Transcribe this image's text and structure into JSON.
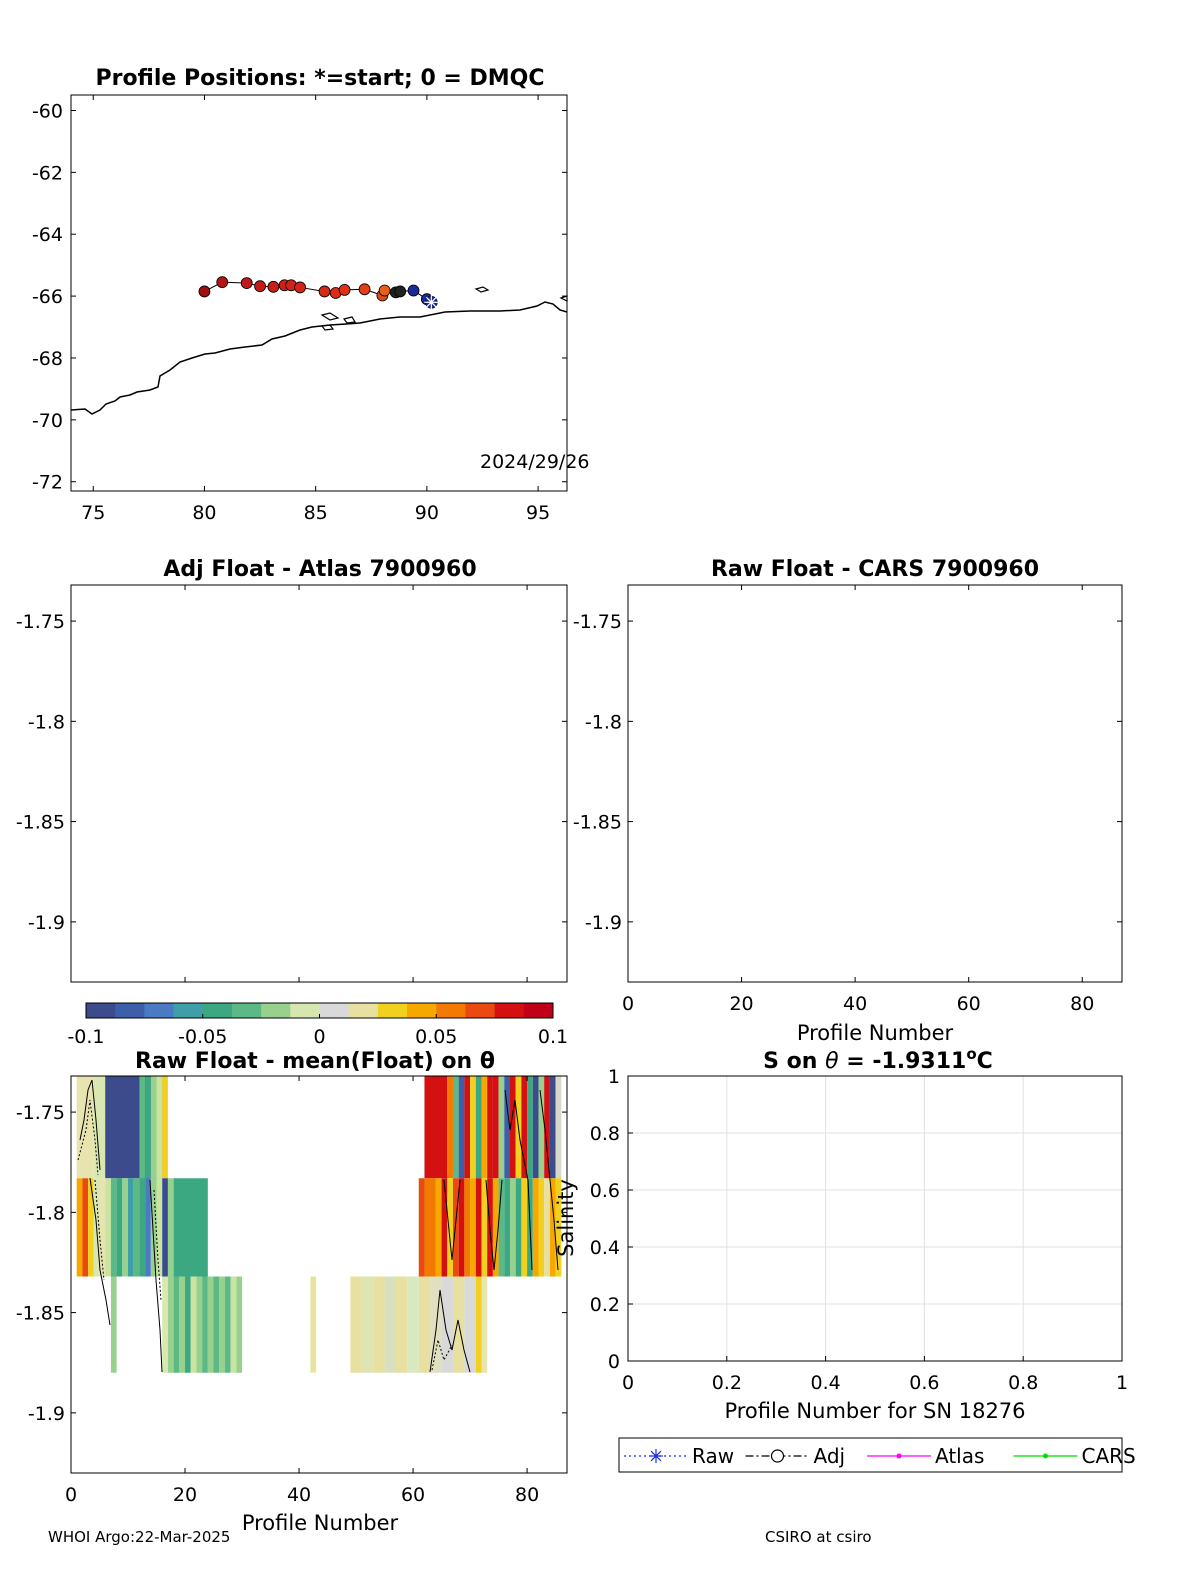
{
  "footer": {
    "left": "WHOI Argo:22-Mar-2025",
    "right": "CSIRO at csiro"
  },
  "chart_data": [
    {
      "id": "map",
      "type": "scatter",
      "title": "Profile Positions: *=start; 0 = DMQC",
      "xlim": [
        74,
        96.3
      ],
      "ylim": [
        -72.3,
        -59.5
      ],
      "xticks": [
        75,
        80,
        85,
        90,
        95
      ],
      "yticks": [
        -60,
        -62,
        -64,
        -66,
        -68,
        -70,
        -72
      ],
      "annotation": "2024/29/26",
      "track": [
        {
          "lon": 80.0,
          "lat": -65.85,
          "color": "#a01010"
        },
        {
          "lon": 80.8,
          "lat": -65.55,
          "color": "#b41414"
        },
        {
          "lon": 81.9,
          "lat": -65.58,
          "color": "#c01818"
        },
        {
          "lon": 82.5,
          "lat": -65.68,
          "color": "#c41c18"
        },
        {
          "lon": 83.1,
          "lat": -65.7,
          "color": "#c81e18"
        },
        {
          "lon": 83.6,
          "lat": -65.65,
          "color": "#cc2018"
        },
        {
          "lon": 83.9,
          "lat": -65.65,
          "color": "#d02218"
        },
        {
          "lon": 84.3,
          "lat": -65.72,
          "color": "#d42418"
        },
        {
          "lon": 85.4,
          "lat": -65.85,
          "color": "#d82818"
        },
        {
          "lon": 85.9,
          "lat": -65.9,
          "color": "#dc2c18"
        },
        {
          "lon": 86.3,
          "lat": -65.8,
          "color": "#e03018"
        },
        {
          "lon": 87.2,
          "lat": -65.78,
          "color": "#e44018"
        },
        {
          "lon": 88.0,
          "lat": -65.98,
          "color": "#e04a18"
        },
        {
          "lon": 88.1,
          "lat": -65.82,
          "color": "#e86018"
        },
        {
          "lon": 88.6,
          "lat": -65.88,
          "color": "#202020"
        },
        {
          "lon": 88.8,
          "lat": -65.85,
          "color": "#202020"
        },
        {
          "lon": 89.4,
          "lat": -65.82,
          "color": "#1a2a9a"
        },
        {
          "lon": 90.0,
          "lat": -66.1,
          "color": "#1a2a9a"
        }
      ],
      "start": {
        "lon": 90.2,
        "lat": -66.2
      }
    },
    {
      "id": "adj-atlas",
      "type": "heatmap",
      "title": "Adj Float - Atlas  7900960",
      "ylim": [
        -1.93,
        -1.732
      ],
      "yticks": [
        "-1.75",
        "-1.8",
        "-1.85",
        "-1.9"
      ]
    },
    {
      "id": "raw-cars",
      "type": "heatmap",
      "title": "Raw Float - CARS  7900960",
      "xlabel": "Profile Number",
      "xlim": [
        0,
        87
      ],
      "ylim": [
        -1.93,
        -1.732
      ],
      "xticks": [
        "0",
        "20",
        "40",
        "60",
        "80"
      ],
      "yticks": [
        "-1.75",
        "-1.8",
        "-1.85",
        "-1.9"
      ]
    },
    {
      "id": "colorbar",
      "type": "heatmap",
      "clim": [
        -0.1,
        0.1
      ],
      "ticks": [
        "-0.1",
        "-0.05",
        "0",
        "0.05",
        "0.1"
      ],
      "colors": [
        "#3b4b8c",
        "#3d5ea8",
        "#4a7ac4",
        "#3f9fa8",
        "#3ba882",
        "#5cb884",
        "#98d08e",
        "#d6e6b0",
        "#d9d9d9",
        "#e8e0a0",
        "#f2d020",
        "#f6a800",
        "#f27a00",
        "#ea4a10",
        "#d41010",
        "#c00018"
      ]
    },
    {
      "id": "raw-mean",
      "type": "heatmap",
      "title": "Raw Float - mean(Float) on θ",
      "xlabel": "Profile Number",
      "xlim": [
        0,
        87
      ],
      "ylim": [
        -1.93,
        -1.732
      ],
      "xticks": [
        "0",
        "20",
        "40",
        "60",
        "80"
      ],
      "yticks": [
        "-1.75",
        "-1.8",
        "-1.85",
        "-1.9"
      ],
      "bands": [
        {
          "y0": -1.783,
          "y1": -1.732,
          "cells": [
            [
              1,
              4,
              "#e8e4b0"
            ],
            [
              4,
              6,
              "#d8e8b0"
            ],
            [
              6,
              16,
              "#3b4b8c"
            ],
            [
              12,
              13,
              "#5cb884"
            ],
            [
              13,
              14,
              "#3ba882"
            ],
            [
              14,
              15,
              "#98d08e"
            ],
            [
              15,
              16,
              "#c8e4a0"
            ],
            [
              16,
              17,
              "#f2d020"
            ],
            [
              62,
              66,
              "#d41010"
            ],
            [
              66,
              67,
              "#f27a00"
            ],
            [
              67,
              68,
              "#5cb884"
            ],
            [
              68,
              69,
              "#3d5ea8"
            ],
            [
              69,
              70,
              "#d41010"
            ],
            [
              70,
              71,
              "#f2d020"
            ],
            [
              71,
              72,
              "#3ba882"
            ],
            [
              72,
              73,
              "#f6a800"
            ],
            [
              73,
              74,
              "#d41010"
            ],
            [
              74,
              75,
              "#d41010"
            ],
            [
              75,
              76,
              "#98d08e"
            ],
            [
              76,
              77,
              "#3d5ea8"
            ],
            [
              77,
              78,
              "#d41010"
            ],
            [
              78,
              79,
              "#f2d020"
            ],
            [
              79,
              80,
              "#d41010"
            ],
            [
              80,
              81,
              "#3ba882"
            ],
            [
              81,
              82,
              "#3b4b8c"
            ],
            [
              82,
              83,
              "#98d08e"
            ],
            [
              83,
              84,
              "#d41010"
            ],
            [
              84,
              85,
              "#3b4b8c"
            ],
            [
              85,
              86,
              "#d8d8c8"
            ]
          ]
        },
        {
          "y0": -1.832,
          "y1": -1.783,
          "cells": [
            [
              1,
              2,
              "#f6a800"
            ],
            [
              2,
              3,
              "#ea4a10"
            ],
            [
              3,
              4,
              "#f2d020"
            ],
            [
              4,
              5,
              "#d8e8b0"
            ],
            [
              5,
              6,
              "#e8e4b0"
            ],
            [
              6,
              7,
              "#c8e4a0"
            ],
            [
              7,
              8,
              "#5cb884"
            ],
            [
              8,
              9,
              "#3ba882"
            ],
            [
              9,
              10,
              "#98d08e"
            ],
            [
              10,
              11,
              "#3f9fa8"
            ],
            [
              11,
              12,
              "#5cb884"
            ],
            [
              12,
              13,
              "#3ba882"
            ],
            [
              13,
              14,
              "#4a7ac4"
            ],
            [
              14,
              15,
              "#98d08e"
            ],
            [
              15,
              16,
              "#c8e4a0"
            ],
            [
              16,
              17,
              "#3b4b8c"
            ],
            [
              17,
              18,
              "#98d08e"
            ],
            [
              18,
              24,
              "#3ba882"
            ],
            [
              61,
              62,
              "#ea4a10"
            ],
            [
              62,
              64,
              "#f27a00"
            ],
            [
              64,
              65,
              "#f6a800"
            ],
            [
              65,
              66,
              "#d41010"
            ],
            [
              66,
              67,
              "#f2d020"
            ],
            [
              67,
              68,
              "#ea4a10"
            ],
            [
              68,
              69,
              "#d41010"
            ],
            [
              69,
              70,
              "#f27a00"
            ],
            [
              70,
              71,
              "#f6a800"
            ],
            [
              71,
              72,
              "#d41010"
            ],
            [
              72,
              73,
              "#f2d020"
            ],
            [
              73,
              74,
              "#d41010"
            ],
            [
              74,
              75,
              "#f6a800"
            ],
            [
              75,
              76,
              "#5cb884"
            ],
            [
              76,
              77,
              "#3ba882"
            ],
            [
              77,
              78,
              "#98d08e"
            ],
            [
              78,
              79,
              "#3ba882"
            ],
            [
              79,
              80,
              "#f2d020"
            ],
            [
              80,
              81,
              "#3ba882"
            ],
            [
              81,
              82,
              "#f6a800"
            ],
            [
              82,
              83,
              "#f2d020"
            ],
            [
              83,
              84,
              "#e8e0a0"
            ],
            [
              84,
              85,
              "#f6a800"
            ],
            [
              85,
              86,
              "#f2d020"
            ]
          ]
        },
        {
          "y0": -1.88,
          "y1": -1.832,
          "cells": [
            [
              7,
              8,
              "#98d08e"
            ],
            [
              16,
              17,
              "#d8e8b0"
            ],
            [
              17,
              18,
              "#98d08e"
            ],
            [
              18,
              19,
              "#5cb884"
            ],
            [
              19,
              20,
              "#98d08e"
            ],
            [
              20,
              21,
              "#3ba882"
            ],
            [
              21,
              22,
              "#c8e4a0"
            ],
            [
              22,
              23,
              "#98d08e"
            ],
            [
              23,
              24,
              "#5cb884"
            ],
            [
              24,
              25,
              "#98d08e"
            ],
            [
              25,
              26,
              "#5cb884"
            ],
            [
              26,
              27,
              "#98d08e"
            ],
            [
              27,
              28,
              "#5cb884"
            ],
            [
              28,
              29,
              "#c8e4a0"
            ],
            [
              29,
              30,
              "#98d08e"
            ],
            [
              42,
              43,
              "#e8e4a0"
            ],
            [
              49,
              51,
              "#e8e0a0"
            ],
            [
              51,
              53,
              "#e0e4b0"
            ],
            [
              53,
              55,
              "#e8e0a0"
            ],
            [
              55,
              57,
              "#d8e0c0"
            ],
            [
              57,
              59,
              "#e8e0a0"
            ],
            [
              59,
              61,
              "#d8e8c0"
            ],
            [
              61,
              63,
              "#e8e0a0"
            ],
            [
              63,
              65,
              "#e0e0c0"
            ],
            [
              65,
              67,
              "#d9d9d9"
            ],
            [
              67,
              69,
              "#e8e0a0"
            ],
            [
              69,
              71,
              "#d9d9d9"
            ],
            [
              71,
              72,
              "#f2d020"
            ],
            [
              72,
              73,
              "#e8e4b0"
            ]
          ]
        }
      ]
    },
    {
      "id": "salinity",
      "type": "line",
      "title_prefix": "S on ",
      "title_theta": "θ",
      "title_value": " = -1.9311",
      "title_degree": "o",
      "title_unit": "C",
      "xlabel": "Profile Number for SN 18276",
      "ylabel": "Salinity",
      "xlim": [
        0,
        1
      ],
      "ylim": [
        0,
        1
      ],
      "grid": true,
      "xticks": [
        "0",
        "0.2",
        "0.4",
        "0.6",
        "0.8",
        "1"
      ],
      "yticks": [
        "0",
        "0.2",
        "0.4",
        "0.6",
        "0.8",
        "1"
      ],
      "legend": [
        {
          "name": "Raw",
          "color": "#1a2ad8",
          "style": "dotted",
          "marker": "asterisk"
        },
        {
          "name": "Adj",
          "color": "#000000",
          "style": "dashdot",
          "marker": "circle"
        },
        {
          "name": "Atlas",
          "color": "#ff00ff",
          "style": "solid",
          "marker": "dot"
        },
        {
          "name": "CARS",
          "color": "#00dd00",
          "style": "solid",
          "marker": "dot"
        }
      ]
    }
  ]
}
